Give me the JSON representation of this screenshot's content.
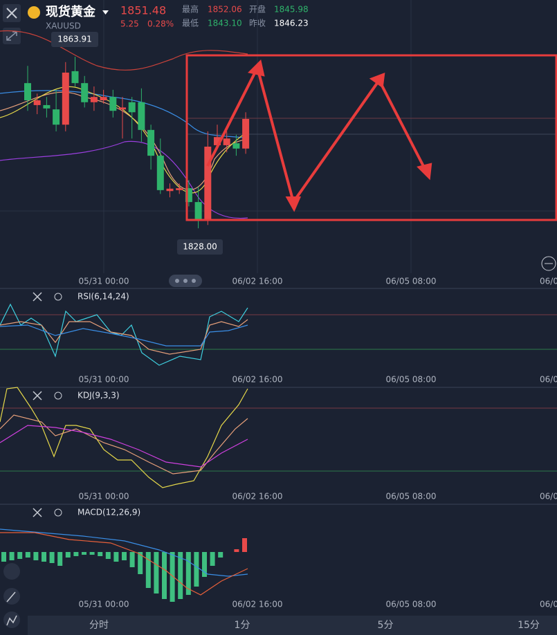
{
  "header": {
    "title": "现货黄金",
    "symbol": "XAUUSD",
    "price": "1851.48",
    "change": "5.25",
    "change_pct": "0.28%",
    "high_label": "最高",
    "high": "1852.06",
    "open_label": "开盘",
    "open": "1845.98",
    "low_label": "最低",
    "low": "1843.10",
    "prev_label": "昨收",
    "prev": "1846.23"
  },
  "chart_data": {
    "type": "candlestick",
    "ylim": [
      1818.6,
      1875.8
    ],
    "max_label": "1863.91",
    "min_label": "1828.00",
    "ohlc": [
      [
        1858.4,
        1862.0,
        1852.6,
        1854.8
      ],
      [
        1853.8,
        1856.2,
        1851.9,
        1854.8
      ],
      [
        1853.8,
        1855.5,
        1851.2,
        1853.1
      ],
      [
        1852.9,
        1857.0,
        1848.3,
        1849.7
      ],
      [
        1849.7,
        1862.8,
        1848.3,
        1860.6
      ],
      [
        1860.9,
        1863.91,
        1857.7,
        1858.4
      ],
      [
        1858.4,
        1859.9,
        1853.3,
        1854.4
      ],
      [
        1854.4,
        1857.7,
        1852.6,
        1855.5
      ],
      [
        1854.8,
        1857.0,
        1854.1,
        1855.5
      ],
      [
        1855.5,
        1857.0,
        1851.2,
        1852.6
      ],
      [
        1852.9,
        1855.5,
        1846.8,
        1853.3
      ],
      [
        1854.4,
        1855.5,
        1846.8,
        1852.3
      ],
      [
        1854.4,
        1857.3,
        1846.1,
        1848.6
      ],
      [
        1848.6,
        1849.7,
        1840.3,
        1843.2
      ],
      [
        1843.2,
        1846.8,
        1835.2,
        1836.0
      ],
      [
        1835.8,
        1837.4,
        1834.5,
        1836.3
      ],
      [
        1836.0,
        1837.4,
        1835.2,
        1836.4
      ],
      [
        1836.4,
        1838.1,
        1832.6,
        1833.5
      ],
      [
        1833.5,
        1836.7,
        1828.0,
        1829.7
      ],
      [
        1829.7,
        1848.3,
        1828.7,
        1845.1
      ],
      [
        1845.4,
        1849.7,
        1844.7,
        1847.1
      ],
      [
        1845.4,
        1848.3,
        1843.9,
        1846.8
      ],
      [
        1845.8,
        1847.6,
        1843.2,
        1844.7
      ],
      [
        1844.7,
        1852.3,
        1843.6,
        1850.9
      ]
    ],
    "up_color": "#e84a4a",
    "down_color": "#2fb36b",
    "x_labels": [
      "05/31 00:00",
      "06/02 16:00",
      "06/05 08:00",
      "06/0"
    ]
  },
  "indicators": [
    "RSI(6,14,24)",
    "KDJ(9,3,3)",
    "MACD(12,26,9)"
  ],
  "tabs": [
    "分时",
    "1分",
    "5分",
    "15分"
  ]
}
